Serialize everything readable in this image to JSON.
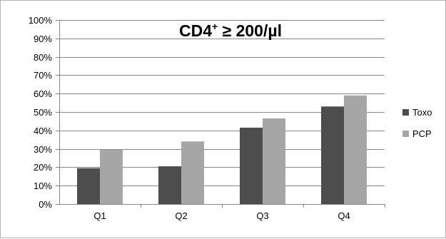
{
  "chart_data": {
    "type": "bar",
    "title_main": "CD4",
    "title_sup": "+",
    "title_rest": " ≥ 200/µl",
    "categories": [
      "Q1",
      "Q2",
      "Q3",
      "Q4"
    ],
    "series": [
      {
        "name": "Toxo",
        "color": "#4d4d4d",
        "values": [
          19.5,
          20.5,
          41.5,
          53
        ]
      },
      {
        "name": "PCP",
        "color": "#a6a6a6",
        "values": [
          29.5,
          34,
          46.5,
          59
        ]
      }
    ],
    "ylim": [
      0,
      100
    ],
    "yticks": [
      "0%",
      "10%",
      "20%",
      "30%",
      "40%",
      "50%",
      "60%",
      "70%",
      "80%",
      "90%",
      "100%"
    ],
    "grid": true,
    "legend_position": "right",
    "colors": {
      "grid": "#868686",
      "axis": "#868686"
    }
  }
}
